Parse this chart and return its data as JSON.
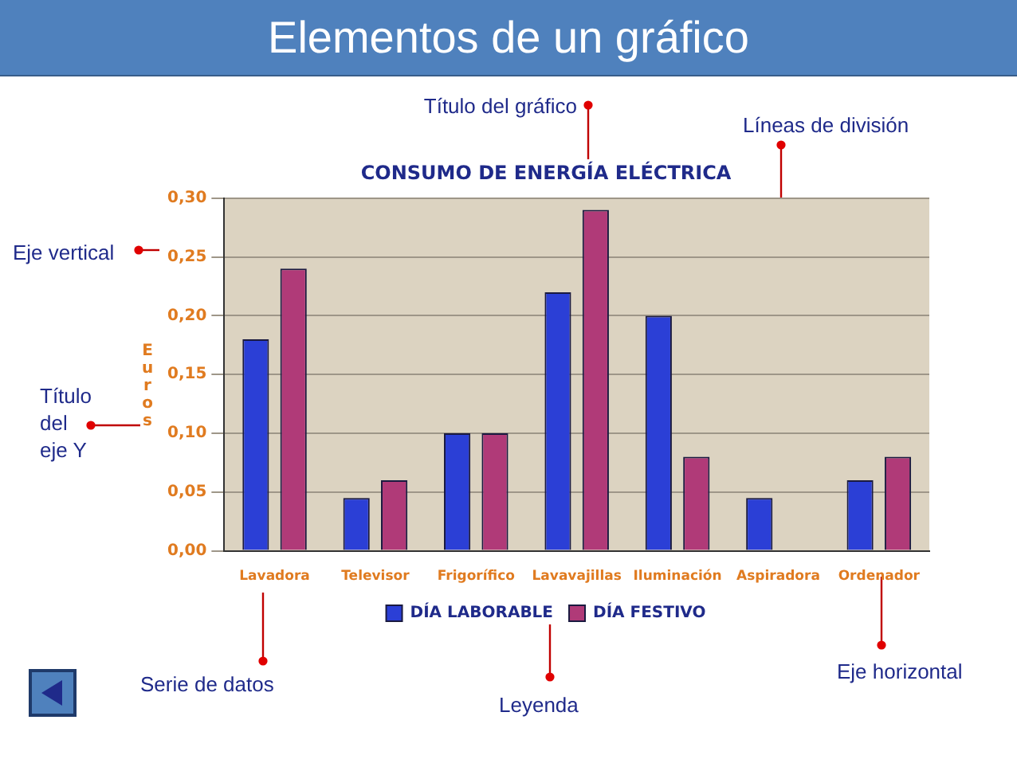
{
  "chart_data": {
    "type": "bar",
    "title": "CONSUMO DE ENERGÍA ELÉCTRICA",
    "ylabel": "Euros",
    "categories": [
      "Lavadora",
      "Televisor",
      "Frigorífico",
      "Lavavajillas",
      "Iluminación",
      "Aspiradora",
      "Ordenador"
    ],
    "series": [
      {
        "name": "DÍA LABORABLE",
        "color": "#2b3fd6",
        "values": [
          0.18,
          0.045,
          0.1,
          0.22,
          0.2,
          0.045,
          0.06
        ]
      },
      {
        "name": "DÍA FESTIVO",
        "color": "#b03a78",
        "values": [
          0.24,
          0.06,
          0.1,
          0.29,
          0.08,
          0.0,
          0.08
        ]
      }
    ],
    "ylim": [
      0,
      0.3
    ],
    "yticks": [
      {
        "value": 0,
        "label": "0,00"
      },
      {
        "value": 0.05,
        "label": "0,05"
      },
      {
        "value": 0.1,
        "label": "0,10"
      },
      {
        "value": 0.15,
        "label": "0,15"
      },
      {
        "value": 0.2,
        "label": "0,20"
      },
      {
        "value": 0.25,
        "label": "0,25"
      },
      {
        "value": 0.3,
        "label": "0,30"
      }
    ],
    "grid": "y",
    "legend": "bottom",
    "annotations": [
      "Elementos de un gráfico",
      "Título del gráfico",
      "Líneas de división",
      "Eje vertical",
      "Título del eje Y",
      "Serie de datos",
      "Leyenda",
      "Eje horizontal"
    ]
  }
}
